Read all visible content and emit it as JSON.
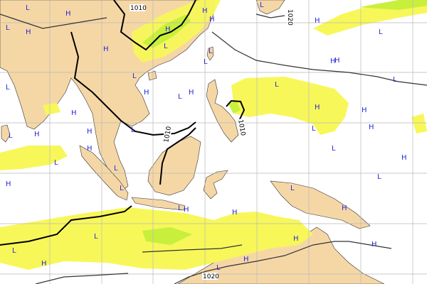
{
  "map": {
    "colors": {
      "ocean": "#ffffff",
      "land": "#f5d7a6",
      "precip_light": "#f7f75a",
      "precip_moderate": "#c8ef3c",
      "precip_heavy": "#8fe04a",
      "isobar": "#000000",
      "pressure_marker": "#2a2ad8",
      "grid": "#b9b9b9"
    },
    "isobar_labels": [
      "1010",
      "1020",
      "1010",
      "1010",
      "1020"
    ],
    "pressure_centers": [
      "L",
      "H",
      "H",
      "L",
      "H",
      "L",
      "H",
      "L",
      "H",
      "H",
      "L",
      "L",
      "H",
      "L",
      "H",
      "L",
      "H",
      "L",
      "H",
      "L",
      "H",
      "L",
      "H",
      "L",
      "H",
      "H",
      "L",
      "H",
      "L",
      "H",
      "L",
      "H",
      "L",
      "H",
      "L",
      "H",
      "L",
      "H",
      "L",
      "L",
      "H",
      "L",
      "H",
      "L",
      "H",
      "L",
      "H",
      "H",
      "L",
      "H",
      "L",
      "H"
    ]
  }
}
